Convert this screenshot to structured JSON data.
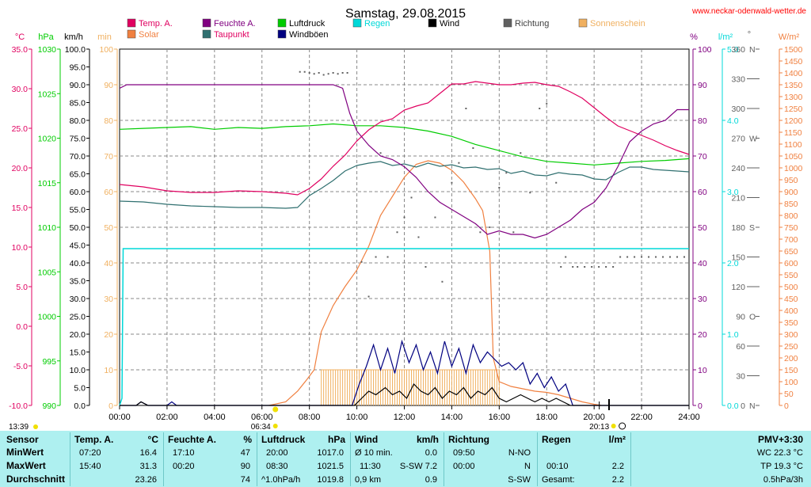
{
  "title": "Samstag, 29.08.2015",
  "site": "www.neckar-odenwald-wetter.de",
  "sunrise": "06:34",
  "sunset": "20:13",
  "moonrise": "13:39",
  "colors": {
    "temp": "#e00060",
    "humidity": "#800080",
    "pressure": "#00cc00",
    "rain": "#00d8d8",
    "wind": "#000000",
    "direction": "#606060",
    "sunshine": "#f0b060",
    "solar": "#f08040",
    "dewpoint": "#307070",
    "gust": "#000080"
  },
  "legend": [
    {
      "key": "temp",
      "label": "Temp. A."
    },
    {
      "key": "humidity",
      "label": "Feuchte A."
    },
    {
      "key": "pressure",
      "label": "Luftdruck"
    },
    {
      "key": "rain",
      "label": "Regen"
    },
    {
      "key": "wind",
      "label": "Wind"
    },
    {
      "key": "direction",
      "label": "Richtung"
    },
    {
      "key": "sunshine",
      "label": "Sonnenschein"
    },
    {
      "key": "solar",
      "label": "Solar"
    },
    {
      "key": "dewpoint",
      "label": "Taupunkt"
    },
    {
      "key": "gust",
      "label": "Windböen"
    }
  ],
  "units": {
    "temp": "°C",
    "pressure": "hPa",
    "wind": "km/h",
    "sun": "min",
    "humidity": "%",
    "rain": "l/m²",
    "dir": "°",
    "solar": "W/m²"
  },
  "chart_data": {
    "type": "line",
    "x_unit": "time of day (hours)",
    "xlim": [
      0,
      24
    ],
    "x_ticks": [
      "00:00",
      "02:00",
      "04:00",
      "06:00",
      "08:00",
      "10:00",
      "12:00",
      "14:00",
      "16:00",
      "18:00",
      "20:00",
      "22:00",
      "24:00"
    ],
    "axes": {
      "temp": {
        "range": [
          -10,
          35
        ],
        "ticks": [
          "35.0",
          "30.0",
          "25.0",
          "20.0",
          "15.0",
          "10.0",
          "5.0",
          "0.0",
          "-5.0",
          "-10.0"
        ]
      },
      "pressure": {
        "range": [
          990,
          1030
        ],
        "ticks": [
          "1030",
          "1025",
          "1020",
          "1015",
          "1010",
          "1005",
          "1000",
          "995",
          "990"
        ]
      },
      "wind": {
        "range": [
          0,
          100
        ],
        "ticks": [
          "100.0",
          "95.0",
          "90.0",
          "85.0",
          "80.0",
          "75.0",
          "70.0",
          "65.0",
          "60.0",
          "55.0",
          "50.0",
          "45.0",
          "40.0",
          "35.0",
          "30.0",
          "25.0",
          "20.0",
          "15.0",
          "10.0",
          "5.0",
          "0.0"
        ]
      },
      "sun": {
        "range": [
          0,
          100
        ],
        "ticks": [
          "100",
          "90",
          "80",
          "70",
          "60",
          "50",
          "40",
          "30",
          "20",
          "10",
          "0"
        ]
      },
      "humidity": {
        "range": [
          0,
          100
        ],
        "ticks": [
          "100",
          "90",
          "80",
          "70",
          "60",
          "50",
          "40",
          "30",
          "20",
          "10",
          "0"
        ]
      },
      "rain": {
        "range": [
          0,
          5
        ],
        "ticks": [
          "5.0",
          "4.0",
          "3.0",
          "2.0",
          "1.0",
          "0.0"
        ]
      },
      "direction": {
        "range": [
          0,
          360
        ],
        "ticks": [
          "360 N",
          "330",
          "300",
          "270 W",
          "240",
          "210",
          "180 S",
          "150",
          "120",
          "90 O",
          "60",
          "30",
          "0 N"
        ]
      },
      "solar": {
        "range": [
          0,
          1500
        ],
        "ticks": [
          "1500",
          "1450",
          "1400",
          "1350",
          "1300",
          "1250",
          "1200",
          "1150",
          "1100",
          "1050",
          "1000",
          "950",
          "900",
          "850",
          "800",
          "750",
          "700",
          "650",
          "600",
          "550",
          "500",
          "450",
          "400",
          "350",
          "300",
          "250",
          "200",
          "150",
          "100",
          "50",
          "0"
        ]
      }
    },
    "series": [
      {
        "name": "Temp. A.",
        "key": "temp",
        "axis": "temp",
        "x": [
          0,
          1,
          2,
          3,
          4,
          5,
          6,
          7,
          7.5,
          8,
          8.5,
          9,
          9.5,
          10,
          10.5,
          11,
          11.5,
          12,
          12.5,
          13,
          13.5,
          14,
          14.5,
          15,
          15.5,
          16,
          16.5,
          17,
          17.5,
          18,
          18.5,
          19,
          19.5,
          20,
          20.5,
          21,
          21.5,
          22,
          22.5,
          23,
          23.5,
          24
        ],
        "y": [
          17.9,
          17.6,
          17.1,
          16.9,
          16.9,
          17.1,
          17.0,
          16.8,
          16.6,
          17.4,
          18.6,
          20.2,
          21.6,
          23.4,
          24.8,
          25.8,
          26.2,
          27.3,
          27.8,
          28.2,
          29.4,
          30.6,
          30.6,
          30.9,
          30.7,
          30.5,
          30.5,
          30.7,
          30.8,
          30.5,
          30.3,
          29.6,
          28.8,
          27.6,
          26.4,
          25.3,
          24.7,
          24.1,
          23.5,
          22.8,
          22.2,
          21.7
        ]
      },
      {
        "name": "Feuchte A.",
        "key": "humidity",
        "axis": "humidity",
        "x": [
          0,
          0.3,
          1,
          2,
          3,
          4,
          5,
          6,
          7,
          8,
          9,
          9.4,
          9.7,
          10,
          10.5,
          11,
          11.5,
          12,
          12.5,
          13,
          13.5,
          14,
          14.5,
          15,
          15.5,
          16,
          16.5,
          17,
          17.5,
          18,
          18.5,
          19,
          19.5,
          20,
          20.5,
          21,
          21.5,
          22,
          22.5,
          23,
          23.5,
          24
        ],
        "y": [
          89,
          90,
          90,
          90,
          90,
          90,
          90,
          90,
          90,
          90,
          90,
          89,
          82,
          77,
          73,
          70,
          69,
          67,
          64,
          60,
          57,
          55,
          53,
          51,
          48,
          49,
          48,
          48,
          47,
          48,
          50,
          52,
          55,
          57,
          61,
          67,
          74,
          77,
          79,
          80,
          83,
          83
        ]
      },
      {
        "name": "Luftdruck",
        "key": "pressure",
        "axis": "pressure",
        "x": [
          0,
          1,
          2,
          3,
          4,
          5,
          6,
          7,
          8,
          9,
          10,
          11,
          12,
          13,
          14,
          15,
          16,
          17,
          18,
          19,
          20,
          21,
          22,
          23,
          24
        ],
        "y": [
          1021.0,
          1021.1,
          1021.2,
          1021.3,
          1021.0,
          1021.2,
          1021.1,
          1021.3,
          1021.4,
          1021.6,
          1021.4,
          1021.4,
          1021.2,
          1020.8,
          1020.2,
          1019.3,
          1018.6,
          1017.9,
          1017.4,
          1017.2,
          1017.0,
          1017.2,
          1017.4,
          1017.5,
          1017.7
        ]
      },
      {
        "name": "Taupunkt",
        "key": "dewpoint",
        "axis": "temp",
        "x": [
          0,
          1,
          2,
          3,
          4,
          5,
          6,
          7,
          7.5,
          8,
          8.5,
          9,
          9.5,
          10,
          10.5,
          11,
          11.5,
          12,
          12.5,
          13,
          13.5,
          14,
          14.5,
          15,
          15.5,
          16,
          16.5,
          17,
          17.5,
          18,
          18.5,
          19,
          19.5,
          20,
          20.5,
          21,
          21.5,
          22,
          22.5,
          23,
          23.5,
          24
        ],
        "y": [
          15.8,
          15.7,
          15.4,
          15.2,
          15.1,
          15.0,
          15.0,
          14.9,
          15.0,
          16.5,
          17.4,
          18.4,
          19.6,
          20.3,
          20.6,
          20.8,
          20.3,
          20.5,
          20.1,
          20.6,
          20.2,
          20.4,
          20.0,
          20.1,
          19.8,
          19.9,
          19.3,
          19.6,
          19.1,
          19.0,
          19.4,
          19.2,
          19.1,
          18.6,
          18.5,
          19.4,
          20.1,
          20.1,
          19.8,
          19.7,
          19.6,
          19.5
        ]
      },
      {
        "name": "Solar",
        "key": "solar",
        "axis": "solar",
        "x": [
          6.3,
          7,
          7.5,
          7.9,
          8.2,
          8.5,
          9,
          9.5,
          10,
          10.5,
          11,
          11.5,
          12,
          12.5,
          13,
          13.5,
          14,
          14.5,
          15,
          15.3,
          15.6,
          15.75,
          16,
          16.5,
          17,
          17.5,
          18,
          18.5,
          19,
          19.5,
          20,
          20.3
        ],
        "y": [
          0,
          15,
          60,
          110,
          150,
          310,
          420,
          500,
          570,
          670,
          800,
          880,
          960,
          1015,
          1030,
          1020,
          990,
          940,
          870,
          820,
          650,
          200,
          100,
          80,
          70,
          60,
          55,
          45,
          30,
          15,
          5,
          0
        ]
      },
      {
        "name": "Wind",
        "key": "wind",
        "axis": "wind",
        "x": [
          0,
          0.7,
          0.9,
          1.2,
          9.9,
          10.2,
          10.5,
          10.8,
          11.2,
          11.5,
          11.8,
          12.1,
          12.4,
          12.7,
          13.0,
          13.3,
          13.6,
          13.9,
          14.2,
          14.5,
          14.8,
          15.1,
          15.4,
          15.7,
          16,
          16.3,
          16.6,
          16.9,
          17.2,
          17.5,
          17.8,
          18.1,
          18.4,
          18.7,
          19,
          19.3,
          24
        ],
        "y": [
          0,
          0,
          1,
          0,
          0,
          2,
          4,
          3,
          5,
          3,
          4,
          2,
          6,
          4,
          3,
          5,
          2,
          4,
          3,
          5,
          2,
          4,
          3,
          5,
          2,
          1,
          2,
          3,
          2,
          1,
          2,
          1,
          2,
          1,
          0,
          0,
          0
        ]
      },
      {
        "name": "Windböen",
        "key": "gust",
        "axis": "wind",
        "x": [
          0,
          0.7,
          0.9,
          1.2,
          2.0,
          2.2,
          2.4,
          9.8,
          10.1,
          10.4,
          10.7,
          11.0,
          11.3,
          11.6,
          11.9,
          12.2,
          12.5,
          12.8,
          13.1,
          13.4,
          13.7,
          14.0,
          14.3,
          14.6,
          14.9,
          15.2,
          15.5,
          15.8,
          16.1,
          16.4,
          16.7,
          17.0,
          17.3,
          17.6,
          17.9,
          18.2,
          18.5,
          18.8,
          19.1,
          24
        ],
        "y": [
          0,
          0,
          1,
          0,
          0,
          1,
          0,
          0,
          6,
          11,
          17,
          10,
          16,
          9,
          18,
          12,
          17,
          10,
          15,
          9,
          18,
          11,
          16,
          9,
          17,
          12,
          15,
          13,
          11,
          12,
          10,
          12,
          6,
          9,
          5,
          8,
          4,
          6,
          0,
          0
        ]
      },
      {
        "name": "Regen",
        "key": "rain",
        "axis": "rain",
        "x": [
          0,
          0.1,
          0.15,
          24
        ],
        "y": [
          0,
          0.1,
          2.2,
          2.2
        ]
      },
      {
        "name": "Richtung",
        "key": "direction",
        "axis": "direction",
        "x": [
          7.6,
          7.8,
          8.0,
          8.2,
          8.4,
          8.6,
          8.8,
          9.0,
          9.2,
          9.4,
          9.6,
          10.2,
          10.5,
          10.8,
          11,
          11.3,
          11.7,
          12,
          12.3,
          12.6,
          12.9,
          13.3,
          13.6,
          14,
          14.3,
          14.6,
          14.9,
          15.2,
          15.6,
          16,
          16.3,
          16.6,
          16.9,
          17.3,
          17.7,
          18,
          18.4,
          18.6,
          18.8,
          19.1,
          19.3,
          19.6,
          19.9,
          20.2,
          20.5,
          20.8,
          21.1,
          21.4,
          21.7,
          22,
          22.3,
          22.6,
          22.9,
          23.2,
          23.5,
          23.8
        ],
        "y": [
          337,
          337,
          336,
          335,
          336,
          334,
          335,
          336,
          335,
          336,
          336,
          145,
          110,
          150,
          255,
          150,
          175,
          190,
          210,
          170,
          140,
          190,
          125,
          225,
          245,
          300,
          260,
          175,
          180,
          220,
          235,
          175,
          255,
          215,
          300,
          305,
          225,
          140,
          150,
          140,
          140,
          140,
          140,
          140,
          140,
          140,
          150,
          150,
          150,
          150,
          150,
          150,
          150,
          150,
          150,
          150
        ]
      },
      {
        "name": "Sonnenschein",
        "key": "sunshine",
        "axis": "sun",
        "x": [
          8.5,
          9,
          9.5,
          10,
          10.5,
          11,
          11.5,
          12,
          12.5,
          13,
          13.5,
          14,
          14.5,
          15,
          15.5
        ],
        "y": [
          10,
          10,
          10,
          10,
          10,
          10,
          10,
          10,
          10,
          10,
          10,
          10,
          10,
          10,
          10
        ]
      }
    ]
  },
  "table": {
    "headers": {
      "sensor": "Sensor",
      "temp": "Temp. A.",
      "temp_unit": "°C",
      "hum": "Feuchte A.",
      "hum_unit": "%",
      "press": "Luftdruck",
      "press_unit": "hPa",
      "wind": "Wind",
      "wind_unit": "km/h",
      "dir": "Richtung",
      "rain": "Regen",
      "rain_unit": "l/m²",
      "pmv": "PMV+3:30"
    },
    "rows": [
      {
        "label": "MinWert",
        "temp_t": "07:20",
        "temp_v": "16.4",
        "hum_t": "17:10",
        "hum_v": "47",
        "press_t": "20:00",
        "press_v": "1017.0",
        "wind_t": "Ø 10 min.",
        "wind_v": "0.0",
        "dir_t": "09:50",
        "dir_v": "N-NO",
        "rain_t": "",
        "rain_v": "",
        "pmv": "WC 22.3 °C"
      },
      {
        "label": "MaxWert",
        "temp_t": "15:40",
        "temp_v": "31.3",
        "hum_t": "00:20",
        "hum_v": "90",
        "press_t": "08:30",
        "press_v": "1021.5",
        "wind_t": "11:30",
        "wind_v": "S-SW 7.2",
        "dir_t": "00:00",
        "dir_v": "N",
        "rain_t": "00:10",
        "rain_v": "2.2",
        "pmv": "TP 19.3 °C"
      },
      {
        "label": "Durchschnitt",
        "temp_t": "",
        "temp_v": "23.26",
        "hum_t": "",
        "hum_v": "74",
        "press_t": "^1.0hPa/h",
        "press_v": "1019.8",
        "wind_t": "0,9 km",
        "wind_v": "0.9",
        "dir_t": "",
        "dir_v": "S-SW",
        "rain_t": "Gesamt:",
        "rain_v": "2.2",
        "pmv": "0.5hPa/3h"
      }
    ]
  }
}
